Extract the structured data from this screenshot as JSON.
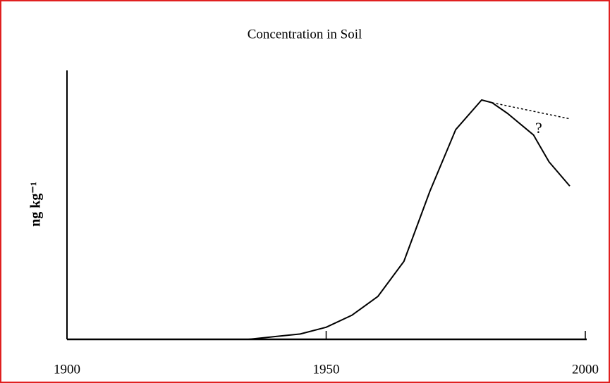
{
  "chart_data": {
    "type": "line",
    "title": "Concentration in Soil",
    "ylabel": "ng kg⁻¹",
    "xlim": [
      1900,
      2000
    ],
    "xticks": [
      1900,
      1950,
      2000
    ],
    "ylim": [
      0,
      100
    ],
    "series": [
      {
        "color": "#000000",
        "dash": false,
        "x": [
          1935,
          1940,
          1945,
          1950,
          1955,
          1960,
          1965,
          1970,
          1975,
          1980,
          1982,
          1985,
          1990,
          1993,
          1997
        ],
        "values": [
          0,
          1,
          2,
          4.5,
          9,
          16,
          29,
          55,
          78,
          89,
          88,
          84,
          76,
          66,
          57
        ]
      },
      {
        "color": "#000000",
        "dash": true,
        "x": [
          1982,
          1997
        ],
        "values": [
          88,
          82
        ]
      }
    ],
    "annotations": [
      {
        "text": "?",
        "x": 1991,
        "y": 78
      }
    ]
  }
}
